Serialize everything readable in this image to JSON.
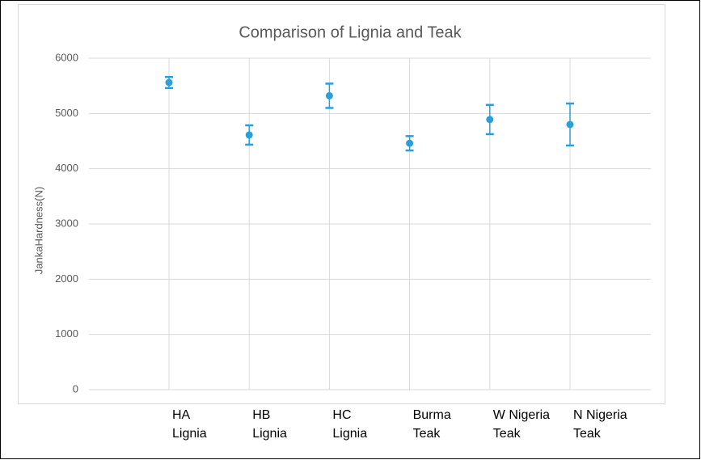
{
  "chart_data": {
    "type": "errordot",
    "title": "Comparison of Lignia and Teak",
    "y_label": "JankaHardness(N)",
    "categories": [
      [
        "HA",
        "Lignia"
      ],
      [
        "HB",
        "Lignia"
      ],
      [
        "HC",
        "Lignia"
      ],
      [
        "Burma",
        "Teak"
      ],
      [
        "W Nigeria",
        "Teak"
      ],
      [
        "N Nigeria",
        "Teak"
      ]
    ],
    "values": [
      5560,
      4610,
      5320,
      4460,
      4890,
      4800
    ],
    "errors": [
      100,
      175,
      220,
      130,
      265,
      380
    ],
    "color": "#2a9fd8",
    "ylim": [
      0,
      6000
    ],
    "yticks": [
      0,
      1000,
      2000,
      3000,
      4000,
      5000,
      6000
    ],
    "grid": true
  }
}
